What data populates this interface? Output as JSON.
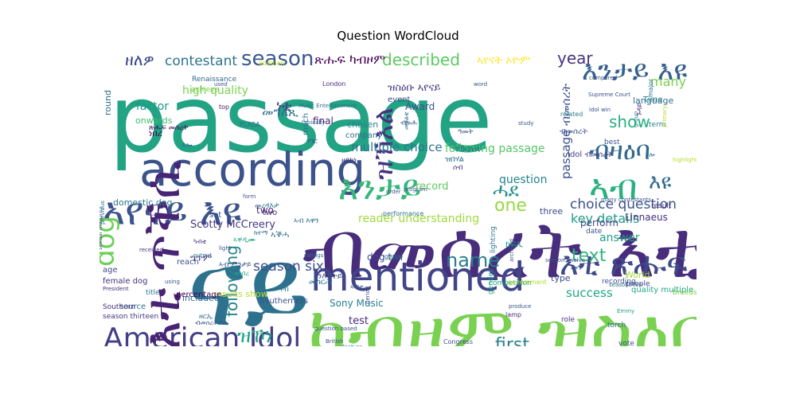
{
  "chart_data": {
    "type": "wordcloud",
    "title": "Question WordCloud",
    "words": [
      {
        "text": "passage",
        "color": "#22a384"
      },
      {
        "text": "ብመሰረት እቲ",
        "color": "#472d7b"
      },
      {
        "text": "ካብዞም ዝስዕቡ",
        "color": "#7ad151"
      },
      {
        "text": "ናይ",
        "color": "#2c728e"
      },
      {
        "text": "mentioned",
        "color": "#414487"
      },
      {
        "text": "according",
        "color": "#3b528b"
      },
      {
        "text": "ኣየናይ እዩ",
        "color": "#3b528b"
      },
      {
        "text": "American Idol",
        "color": "#433e85"
      },
      {
        "text": "እቲ ጥቕሲ",
        "color": "#482475"
      },
      {
        "text": "እንታይ",
        "color": "#35b779"
      },
      {
        "text": "ኣብ",
        "color": "#2ab07f"
      },
      {
        "text": "ብዛዕባ",
        "color": "#31688e"
      },
      {
        "text": "እቲ ጽሑፍ",
        "color": "#3e4989"
      },
      {
        "text": "እንታይ እዩ",
        "color": "#355f8d"
      },
      {
        "text": "ዝኾነ",
        "color": "#20a486"
      },
      {
        "text": "season",
        "color": "#38588c"
      },
      {
        "text": "described",
        "color": "#5ec962"
      },
      {
        "text": "dog",
        "color": "#6ece58"
      },
      {
        "text": "name",
        "color": "#287d8e"
      },
      {
        "text": "first",
        "color": "#26828e"
      },
      {
        "text": "text",
        "color": "#2fb47c"
      },
      {
        "text": "show",
        "color": "#29af7f"
      },
      {
        "text": "one",
        "color": "#95d840"
      },
      {
        "text": "ዝኽእል",
        "color": "#46327e"
      },
      {
        "text": "ሓደ",
        "color": "#21918c"
      },
      {
        "text": "እዩ",
        "color": "#31688e"
      },
      {
        "text": "ዘለዎ",
        "color": "#3e4a89"
      },
      {
        "text": "contestant",
        "color": "#2c738e"
      },
      {
        "text": "ጽሑፍ ካብዞም",
        "color": "#440154"
      },
      {
        "text": "ኣየናት ኦዮም",
        "color": "#fde725"
      },
      {
        "text": "year",
        "color": "#46337f"
      },
      {
        "text": "following",
        "color": "#26828e"
      },
      {
        "text": "season six",
        "color": "#3d4d8a"
      },
      {
        "text": "choice question",
        "color": "#3b528b"
      },
      {
        "text": "key details",
        "color": "#1f9e89"
      },
      {
        "text": "passage ብመሰረት",
        "color": "#3b528b"
      },
      {
        "text": "answer",
        "color": "#1fa188"
      },
      {
        "text": "many",
        "color": "#7ad151"
      },
      {
        "text": "high quality",
        "color": "#7ad151"
      },
      {
        "text": "factor",
        "color": "#1f968b"
      },
      {
        "text": "multiple choice",
        "color": "#2a768e"
      },
      {
        "text": "following passage",
        "color": "#54c568"
      },
      {
        "text": "question",
        "color": "#25848e"
      },
      {
        "text": "success",
        "color": "#21a685"
      },
      {
        "text": "perform",
        "color": "#3f4889"
      },
      {
        "text": "Scotty McCreery",
        "color": "#443983"
      },
      {
        "text": "two",
        "color": "#482878"
      },
      {
        "text": "included",
        "color": "#31688e"
      },
      {
        "text": "results show",
        "color": "#b5de2b"
      },
      {
        "text": "domestic dog",
        "color": "#2a778e"
      },
      {
        "text": "three",
        "color": "#3e4989"
      },
      {
        "text": "Idol ብመሰረት",
        "color": "#433e85"
      },
      {
        "text": "language",
        "color": "#2d708e"
      },
      {
        "text": "round",
        "color": "#2d708e"
      },
      {
        "text": "onwards",
        "color": "#42be71"
      },
      {
        "text": "reader understanding",
        "color": "#9fda3a"
      },
      {
        "text": "dog tail",
        "color": "#3f4788"
      },
      {
        "text": "record",
        "color": "#5ec962"
      },
      {
        "text": "test",
        "color": "#472c7a"
      },
      {
        "text": "Sony Music",
        "color": "#26818e"
      },
      {
        "text": "Linnaeus",
        "color": "#46307e"
      },
      {
        "text": "World",
        "color": "#a5db36"
      },
      {
        "text": "final",
        "color": "#482173"
      },
      {
        "text": "Award",
        "color": "#3b528b"
      },
      {
        "text": "event",
        "color": "#3e4989"
      },
      {
        "text": "company",
        "color": "#2d708e"
      },
      {
        "text": "chosen",
        "color": "#25848e"
      },
      {
        "text": "ዝስዕቡ ኣየናይ",
        "color": "#443a83"
      },
      {
        "text": "ነቲ",
        "color": "#453781"
      },
      {
        "text": "መግለጺ",
        "color": "#2e6e8e"
      },
      {
        "text": "ዝበሃል",
        "color": "#2d708e"
      },
      {
        "text": "ንኽረክብ",
        "color": "#2c728e"
      },
      {
        "text": "ክፍሊ",
        "color": "#1e9b8a"
      },
      {
        "text": "ብመሰረት",
        "color": "#3b528b"
      },
      {
        "text": "ነበረ",
        "color": "#440154"
      },
      {
        "text": "ግጥም",
        "color": "#46327e"
      },
      {
        "text": "ኣቕሓ",
        "color": "#2d708e"
      },
      {
        "text": "type",
        "color": "#3e4989"
      },
      {
        "text": "source",
        "color": "#2d708e"
      },
      {
        "text": "female dog",
        "color": "#46327e"
      },
      {
        "text": "age",
        "color": "#3f4788"
      },
      {
        "text": "reach",
        "color": "#3b528b"
      },
      {
        "text": "two",
        "color": "#482878"
      },
      {
        "text": "title",
        "color": "#2a788e"
      },
      {
        "text": "percentage",
        "color": "#440154"
      },
      {
        "text": "season thirteen",
        "color": "#443983"
      },
      {
        "text": "Southern",
        "color": "#46307e"
      },
      {
        "text": "Southerners",
        "color": "#3b528b"
      },
      {
        "text": "quality multiple",
        "color": "#22a884"
      },
      {
        "text": "Supreme Court",
        "color": "#3b528b"
      },
      {
        "text": "Renaissance",
        "color": "#31688e"
      },
      {
        "text": "achieve",
        "color": "#7ad151"
      },
      {
        "text": "addition",
        "color": "#c2df23"
      },
      {
        "text": "Time",
        "color": "#26828e"
      },
      {
        "text": "result",
        "color": "#46327e"
      },
      {
        "text": "term",
        "color": "#26828e"
      },
      {
        "text": "date",
        "color": "#3b528b"
      },
      {
        "text": "best",
        "color": "#3b528b"
      },
      {
        "text": "people",
        "color": "#443983"
      },
      {
        "text": "role",
        "color": "#46307e"
      },
      {
        "text": "breeds",
        "color": "#7ad151"
      },
      {
        "text": "vote",
        "color": "#3b528b"
      },
      {
        "text": "torch",
        "color": "#31688e"
      },
      {
        "text": "recording",
        "color": "#3b528b"
      },
      {
        "text": "competition",
        "color": "#22a884"
      },
      {
        "text": "performance",
        "color": "#2d708e"
      },
      {
        "text": "genre",
        "color": "#2d708e"
      },
      {
        "text": "gender",
        "color": "#20a486"
      },
      {
        "text": "government",
        "color": "#b5de2b"
      },
      {
        "text": "Congress",
        "color": "#3b528b"
      },
      {
        "text": "London",
        "color": "#472c7a"
      },
      {
        "text": "top",
        "color": "#481b6d"
      },
      {
        "text": "PLASA",
        "color": "#2d708e"
      },
      {
        "text": "related",
        "color": "#2a788e"
      },
      {
        "text": "study",
        "color": "#3b528b"
      },
      {
        "text": "compared",
        "color": "#3b528b"
      },
      {
        "text": "word",
        "color": "#3b528b"
      },
      {
        "text": "Emmy",
        "color": "#1fa187"
      },
      {
        "text": "major",
        "color": "#2d708e"
      },
      {
        "text": "primary",
        "color": "#b5de2b"
      },
      {
        "text": "group",
        "color": "#25848e"
      },
      {
        "text": "Idol win",
        "color": "#3b528b"
      },
      {
        "text": "lighting",
        "color": "#2a788e"
      },
      {
        "text": "lamp",
        "color": "#472c7a"
      },
      {
        "text": "produce",
        "color": "#3b528b"
      },
      {
        "text": "British",
        "color": "#3b528b"
      },
      {
        "text": "feature",
        "color": "#2d708e"
      },
      {
        "text": "order",
        "color": "#3b528b"
      },
      {
        "text": "many contestants",
        "color": "#3b528b"
      },
      {
        "text": "seasons ten",
        "color": "#2d708e"
      },
      {
        "text": "season twelve",
        "color": "#3b528b"
      },
      {
        "text": "question based",
        "color": "#3b528b"
      },
      {
        "text": "ratings",
        "color": "#2d708e"
      },
      {
        "text": "received",
        "color": "#46327e"
      },
      {
        "text": "output",
        "color": "#2d708e"
      },
      {
        "text": "light",
        "color": "#3b528b"
      },
      {
        "text": "form",
        "color": "#3b528b"
      },
      {
        "text": "period",
        "color": "#3b528b"
      },
      {
        "text": "using",
        "color": "#3b528b"
      },
      {
        "text": "President",
        "color": "#46327e"
      },
      {
        "text": "previous",
        "color": "#2d708e"
      },
      {
        "text": "sexual maturity",
        "color": "#3b528b"
      },
      {
        "text": "Music Entertainment",
        "color": "#2d708e"
      },
      {
        "text": "highlighted",
        "color": "#b5de2b"
      },
      {
        "text": "archbird",
        "color": "#3b528b"
      },
      {
        "text": "program",
        "color": "#3b528b"
      },
      {
        "text": "typically",
        "color": "#2d708e"
      },
      {
        "text": "used",
        "color": "#3b528b"
      },
      {
        "text": "set",
        "color": "#3b528b"
      },
      {
        "text": "much",
        "color": "#2d708e"
      },
      {
        "text": "ንእሽተይ",
        "color": "#3b528b"
      },
      {
        "text": "መስርሕ",
        "color": "#2d708e"
      },
      {
        "text": "ጉዳይ",
        "color": "#46327e"
      },
      {
        "text": "ናብ",
        "color": "#2d708e"
      },
      {
        "text": "መን",
        "color": "#3b528b"
      },
      {
        "text": "ዘሎ",
        "color": "#2d708e"
      },
      {
        "text": "ኣቐዲሙ",
        "color": "#22a884"
      },
      {
        "text": "ብዙሕ",
        "color": "#3b528b"
      },
      {
        "text": "ሰብ",
        "color": "#46327e"
      },
      {
        "text": "ዘርኢ",
        "color": "#2d708e"
      },
      {
        "text": "ሃገር",
        "color": "#3b528b"
      },
      {
        "text": "ዓመት",
        "color": "#3b528b"
      },
      {
        "text": "ኣብ እዋን",
        "color": "#2d708e"
      },
      {
        "text": "ከተማ",
        "color": "#2d708e"
      },
      {
        "text": "መዓልቲ",
        "color": "#2d708e"
      },
      {
        "text": "ኣብቲ",
        "color": "#3b528b"
      },
      {
        "text": "ዘይኮነ",
        "color": "#46327e"
      },
      {
        "text": "ኣሎ",
        "color": "#2d708e"
      },
      {
        "text": "ዝነበረ",
        "color": "#22a884"
      },
      {
        "text": "ብመሰረት እዚ",
        "color": "#3b528b"
      },
      {
        "text": "ጽሑፍ መሰረት",
        "color": "#440154"
      },
      {
        "text": "መረዳእታ",
        "color": "#2d708e"
      },
      {
        "text": "ኣብ ምንታይ",
        "color": "#3b528b"
      },
      {
        "text": "ካብቲ",
        "color": "#46327e"
      },
      {
        "text": "ግዜ",
        "color": "#2d708e"
      }
    ]
  }
}
